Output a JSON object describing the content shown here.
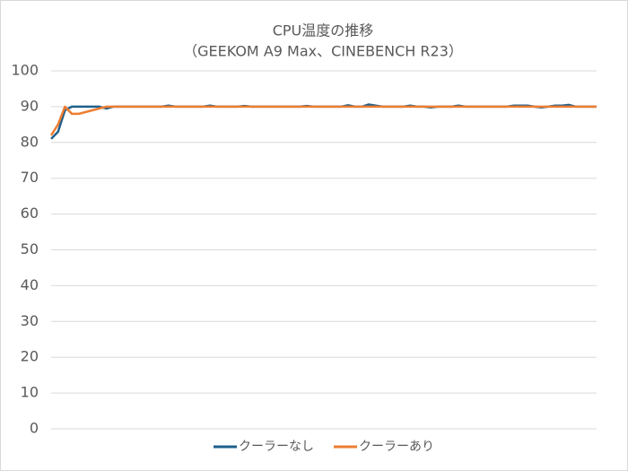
{
  "chart_data": {
    "type": "line",
    "title": "CPU温度の推移",
    "subtitle": "（GEEKOM A9 Max、CINEBENCH R23）",
    "ylim": [
      0,
      100
    ],
    "yticks": [
      0,
      10,
      20,
      30,
      40,
      50,
      60,
      70,
      80,
      90,
      100
    ],
    "grid": true,
    "legend": "bottom",
    "series": [
      {
        "name": "クーラーなし",
        "color": "#1f5f8b",
        "values": [
          81,
          83,
          89,
          90,
          90,
          90,
          90,
          90,
          89.5,
          90,
          90,
          90,
          90,
          90,
          90,
          90,
          90,
          90.3,
          90,
          90,
          90,
          90,
          90,
          90.3,
          90,
          90,
          90,
          90,
          90.2,
          90,
          90,
          90,
          90,
          90,
          90,
          90,
          90,
          90.2,
          90,
          90,
          90,
          90,
          90,
          90.4,
          90,
          90,
          90.6,
          90.3,
          90,
          90,
          90,
          90,
          90.3,
          90,
          90,
          89.8,
          90,
          90,
          90,
          90.3,
          90,
          90,
          90,
          90,
          90,
          90,
          90,
          90.3,
          90.3,
          90.3,
          90,
          89.8,
          90,
          90.3,
          90.3,
          90.5,
          90,
          90,
          90,
          90
        ]
      },
      {
        "name": "クーラーあり",
        "color": "#ed7d31",
        "values": [
          82,
          85,
          90,
          88,
          88,
          88.5,
          89,
          89.5,
          90,
          90,
          90,
          90,
          90,
          90,
          90,
          90,
          90,
          90,
          90,
          90,
          90,
          90,
          90,
          90,
          90,
          90,
          90,
          90,
          90,
          90,
          90,
          90,
          90,
          90,
          90,
          90,
          90,
          90,
          90,
          90,
          90,
          90,
          90,
          90,
          90,
          90,
          90,
          90,
          90,
          90,
          90,
          90,
          90,
          90,
          90,
          90,
          90,
          90,
          90,
          90,
          90,
          90,
          90,
          90,
          90,
          90,
          90,
          90,
          90,
          90,
          90,
          90,
          90,
          90,
          90,
          90,
          90,
          90,
          90,
          90
        ]
      }
    ]
  }
}
